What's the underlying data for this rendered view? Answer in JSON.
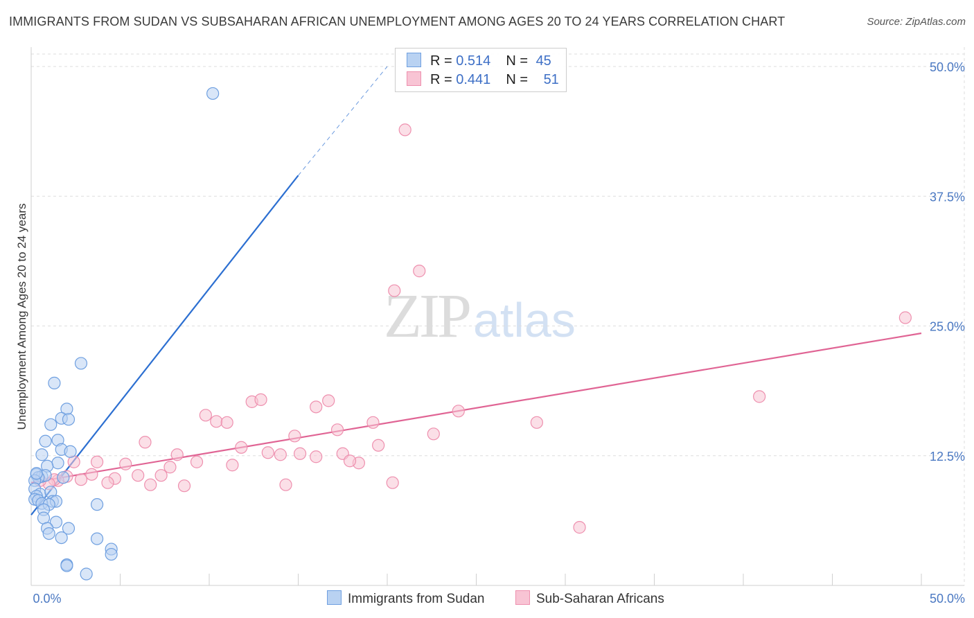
{
  "title": "IMMIGRANTS FROM SUDAN VS SUBSAHARAN AFRICAN UNEMPLOYMENT AMONG AGES 20 TO 24 YEARS CORRELATION CHART",
  "source": "Source: ZipAtlas.com",
  "watermark": {
    "zip": "ZIP",
    "atlas": "atlas"
  },
  "colors": {
    "blue_fill": "#b9d2f2",
    "blue_stroke": "#6e9fe0",
    "blue_line": "#2c6fd1",
    "pink_fill": "#f8c4d4",
    "pink_stroke": "#ee8fae",
    "pink_line": "#e06494",
    "grid": "#dddddd",
    "tick_text": "#4a78c2"
  },
  "legend": {
    "rows": [
      {
        "r_label": "R = ",
        "r_value": "0.514",
        "n_label": "N = ",
        "n_value": "45"
      },
      {
        "r_label": "R = ",
        "r_value": "0.441",
        "n_label": "N = ",
        "n_value": "51"
      }
    ]
  },
  "bottom_legend": [
    {
      "label": "Immigrants from Sudan"
    },
    {
      "label": "Sub-Saharan Africans"
    }
  ],
  "chart_data": {
    "type": "scatter",
    "title": "IMMIGRANTS FROM SUDAN VS SUBSAHARAN AFRICAN UNEMPLOYMENT AMONG AGES 20 TO 24 YEARS CORRELATION CHART",
    "xlabel": "",
    "ylabel": "Unemployment Among Ages 20 to 24 years",
    "xlim": [
      0,
      50
    ],
    "ylim": [
      0,
      50
    ],
    "x_tick_labels": [
      "0.0%",
      "50.0%"
    ],
    "y_tick_labels": [
      "12.5%",
      "25.0%",
      "37.5%",
      "50.0%"
    ],
    "y_ticks": [
      12.5,
      25.0,
      37.5,
      50.0
    ],
    "grid": true,
    "series": [
      {
        "name": "Immigrants from Sudan",
        "R": 0.514,
        "N": 45,
        "trend": {
          "x0": 0,
          "y0": 6.8,
          "x1": 15,
          "y1": 39.5,
          "dash_to_x": 20,
          "dash_to_y": 50
        },
        "points": [
          [
            10.2,
            47.4
          ],
          [
            2.8,
            21.4
          ],
          [
            1.3,
            19.5
          ],
          [
            2.0,
            17.0
          ],
          [
            1.7,
            16.1
          ],
          [
            2.1,
            16.0
          ],
          [
            1.1,
            15.5
          ],
          [
            0.8,
            13.9
          ],
          [
            1.5,
            14.0
          ],
          [
            1.7,
            13.1
          ],
          [
            2.2,
            12.9
          ],
          [
            0.6,
            12.6
          ],
          [
            1.5,
            11.8
          ],
          [
            0.9,
            11.5
          ],
          [
            0.3,
            10.7
          ],
          [
            0.6,
            10.5
          ],
          [
            0.8,
            10.6
          ],
          [
            0.4,
            10.4
          ],
          [
            1.8,
            10.4
          ],
          [
            0.2,
            10.1
          ],
          [
            0.2,
            9.3
          ],
          [
            0.5,
            8.8
          ],
          [
            1.1,
            9.0
          ],
          [
            0.3,
            8.6
          ],
          [
            0.2,
            8.3
          ],
          [
            0.4,
            8.2
          ],
          [
            1.2,
            8.1
          ],
          [
            1.4,
            8.1
          ],
          [
            0.6,
            7.9
          ],
          [
            1.0,
            7.8
          ],
          [
            3.7,
            7.8
          ],
          [
            0.7,
            7.3
          ],
          [
            0.7,
            6.5
          ],
          [
            1.4,
            6.1
          ],
          [
            0.9,
            5.5
          ],
          [
            2.1,
            5.5
          ],
          [
            1.0,
            5.0
          ],
          [
            1.7,
            4.6
          ],
          [
            3.7,
            4.5
          ],
          [
            4.5,
            3.5
          ],
          [
            4.5,
            3.0
          ],
          [
            2.0,
            2.0
          ],
          [
            2.0,
            1.9
          ],
          [
            3.1,
            1.1
          ],
          [
            0.3,
            10.8
          ]
        ]
      },
      {
        "name": "Sub-Saharan Africans",
        "R": 0.441,
        "N": 51,
        "trend": {
          "x0": 0,
          "y0": 9.9,
          "x1": 50,
          "y1": 24.3
        },
        "points": [
          [
            21.0,
            43.9
          ],
          [
            21.8,
            30.3
          ],
          [
            20.4,
            28.4
          ],
          [
            49.1,
            25.8
          ],
          [
            12.4,
            17.7
          ],
          [
            12.9,
            17.9
          ],
          [
            16.0,
            17.2
          ],
          [
            16.7,
            17.8
          ],
          [
            40.9,
            18.2
          ],
          [
            24.0,
            16.8
          ],
          [
            9.8,
            16.4
          ],
          [
            10.4,
            15.8
          ],
          [
            11.0,
            15.7
          ],
          [
            19.2,
            15.7
          ],
          [
            28.4,
            15.7
          ],
          [
            17.2,
            15.0
          ],
          [
            22.6,
            14.6
          ],
          [
            14.8,
            14.4
          ],
          [
            6.4,
            13.8
          ],
          [
            19.5,
            13.5
          ],
          [
            11.8,
            13.3
          ],
          [
            13.3,
            12.8
          ],
          [
            14.0,
            12.6
          ],
          [
            15.1,
            12.7
          ],
          [
            16.0,
            12.4
          ],
          [
            17.5,
            12.7
          ],
          [
            8.2,
            12.6
          ],
          [
            9.3,
            11.9
          ],
          [
            18.4,
            11.8
          ],
          [
            17.9,
            12.0
          ],
          [
            3.7,
            11.9
          ],
          [
            2.4,
            11.9
          ],
          [
            5.3,
            11.7
          ],
          [
            7.8,
            11.4
          ],
          [
            11.3,
            11.6
          ],
          [
            3.4,
            10.7
          ],
          [
            6.0,
            10.6
          ],
          [
            7.3,
            10.6
          ],
          [
            4.7,
            10.3
          ],
          [
            2.0,
            10.5
          ],
          [
            1.5,
            10.1
          ],
          [
            1.3,
            10.2
          ],
          [
            2.8,
            10.2
          ],
          [
            4.3,
            9.9
          ],
          [
            1.0,
            9.8
          ],
          [
            0.5,
            10.1
          ],
          [
            6.7,
            9.7
          ],
          [
            8.6,
            9.6
          ],
          [
            14.3,
            9.7
          ],
          [
            20.3,
            9.9
          ],
          [
            30.8,
            5.6
          ]
        ]
      }
    ]
  }
}
